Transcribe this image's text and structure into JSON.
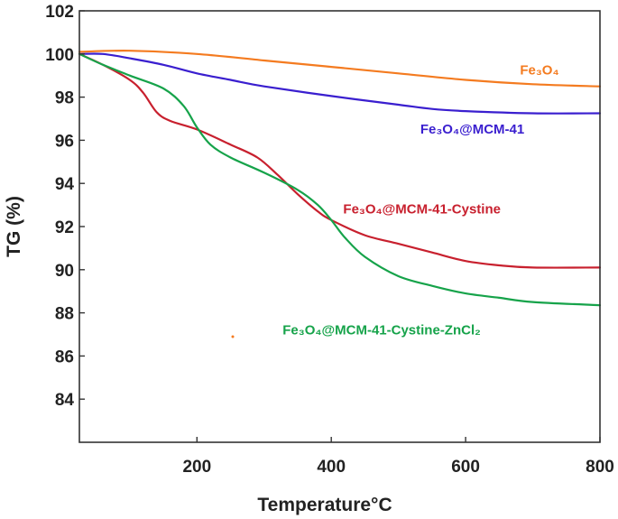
{
  "chart_data": {
    "type": "line",
    "xlabel": "Temperature°C",
    "ylabel": "TG (%)",
    "xlim": [
      25,
      800
    ],
    "ylim": [
      82,
      102
    ],
    "xticks": [
      200,
      400,
      600,
      800
    ],
    "yticks": [
      84,
      86,
      88,
      90,
      92,
      94,
      96,
      98,
      100,
      102
    ],
    "grid": false,
    "legend": "inline labels near curve ends",
    "series": [
      {
        "name": "Fe₃O₄",
        "color": "#f47b20",
        "points": [
          [
            25,
            100.1
          ],
          [
            100,
            100.15
          ],
          [
            200,
            100.0
          ],
          [
            300,
            99.7
          ],
          [
            400,
            99.4
          ],
          [
            500,
            99.1
          ],
          [
            600,
            98.8
          ],
          [
            700,
            98.6
          ],
          [
            800,
            98.5
          ]
        ]
      },
      {
        "name": "Fe₃O₄@MCM-41",
        "color": "#3a1fcf",
        "points": [
          [
            25,
            100.0
          ],
          [
            60,
            100.0
          ],
          [
            100,
            99.8
          ],
          [
            150,
            99.5
          ],
          [
            200,
            99.1
          ],
          [
            250,
            98.8
          ],
          [
            300,
            98.5
          ],
          [
            400,
            98.05
          ],
          [
            500,
            97.65
          ],
          [
            550,
            97.45
          ],
          [
            600,
            97.35
          ],
          [
            700,
            97.25
          ],
          [
            800,
            97.25
          ]
        ]
      },
      {
        "name": "Fe₃O₄@MCM-41-Cystine",
        "color": "#c8202e",
        "points": [
          [
            25,
            100.0
          ],
          [
            60,
            99.5
          ],
          [
            100,
            98.8
          ],
          [
            120,
            98.2
          ],
          [
            140,
            97.3
          ],
          [
            160,
            96.9
          ],
          [
            200,
            96.5
          ],
          [
            250,
            95.8
          ],
          [
            290,
            95.2
          ],
          [
            320,
            94.4
          ],
          [
            350,
            93.5
          ],
          [
            380,
            92.7
          ],
          [
            400,
            92.3
          ],
          [
            450,
            91.6
          ],
          [
            500,
            91.2
          ],
          [
            550,
            90.8
          ],
          [
            600,
            90.4
          ],
          [
            650,
            90.2
          ],
          [
            700,
            90.1
          ],
          [
            800,
            90.1
          ]
        ]
      },
      {
        "name": "Fe₃O₄@MCM-41-Cystine-ZnCl₂",
        "color": "#16a34a",
        "points": [
          [
            25,
            100.0
          ],
          [
            60,
            99.5
          ],
          [
            100,
            99.0
          ],
          [
            150,
            98.4
          ],
          [
            180,
            97.6
          ],
          [
            200,
            96.6
          ],
          [
            220,
            95.8
          ],
          [
            250,
            95.2
          ],
          [
            300,
            94.5
          ],
          [
            350,
            93.7
          ],
          [
            380,
            93.0
          ],
          [
            400,
            92.3
          ],
          [
            420,
            91.5
          ],
          [
            450,
            90.6
          ],
          [
            500,
            89.7
          ],
          [
            550,
            89.25
          ],
          [
            600,
            88.9
          ],
          [
            650,
            88.7
          ],
          [
            700,
            88.5
          ],
          [
            800,
            88.35
          ]
        ]
      }
    ]
  },
  "annotations": [
    {
      "text": "Fe₃O₄",
      "series": 0,
      "x": 710,
      "y": 99.05
    },
    {
      "text": "Fe₃O₄@MCM-41",
      "series": 1,
      "x": 610,
      "y": 96.3
    },
    {
      "text": "Fe₃O₄@MCM-41-Cystine",
      "series": 2,
      "x": 535,
      "y": 92.6
    },
    {
      "text": "Fe₃O₄@MCM-41-Cystine-ZnCl₂",
      "series": 3,
      "x": 475,
      "y": 87.0
    }
  ]
}
